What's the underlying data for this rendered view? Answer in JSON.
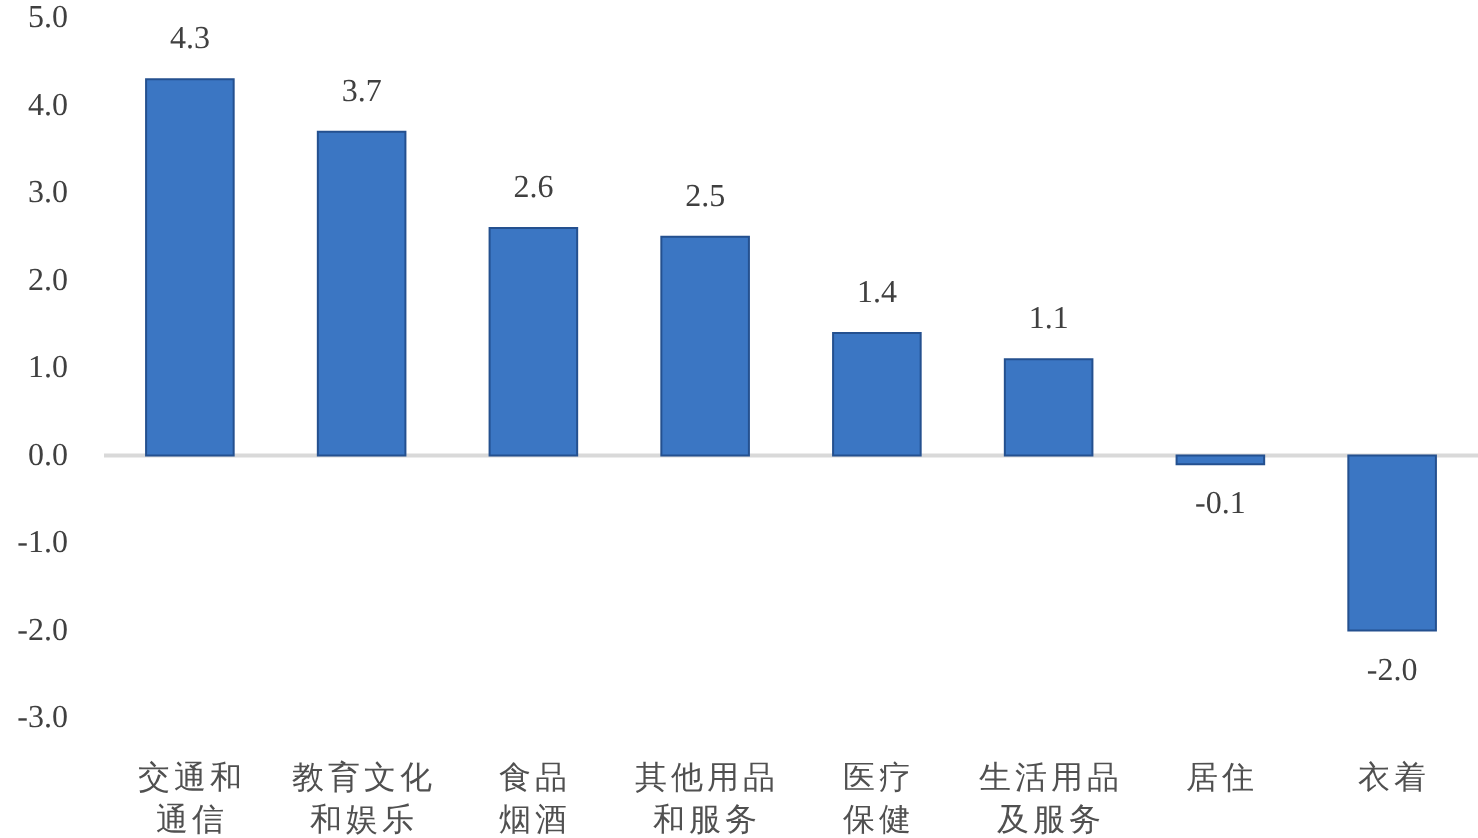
{
  "chart_data": {
    "type": "bar",
    "categories": [
      "交通和通信",
      "教育文化和娱乐",
      "食品烟酒",
      "其他用品和服务",
      "医疗保健",
      "生活用品及服务",
      "居住",
      "衣着"
    ],
    "values": [
      4.3,
      3.7,
      2.6,
      2.5,
      1.4,
      1.1,
      -0.1,
      -2.0
    ],
    "value_labels": [
      "4.3",
      "3.7",
      "2.6",
      "2.5",
      "1.4",
      "1.1",
      "-0.1",
      "-2.0"
    ],
    "color": "#3b76c3",
    "ylim": [
      -3,
      5
    ],
    "yticks": [
      {
        "value": -3,
        "label": "-3.0"
      },
      {
        "value": -2,
        "label": "-2.0"
      },
      {
        "value": -1,
        "label": "-1.0"
      },
      {
        "value": 0,
        "label": "0.0"
      },
      {
        "value": 1,
        "label": "1.0"
      },
      {
        "value": 2,
        "label": "2.0"
      },
      {
        "value": 3,
        "label": "3.0"
      },
      {
        "value": 4,
        "label": "4.0"
      },
      {
        "value": 5,
        "label": "5.0"
      }
    ]
  }
}
